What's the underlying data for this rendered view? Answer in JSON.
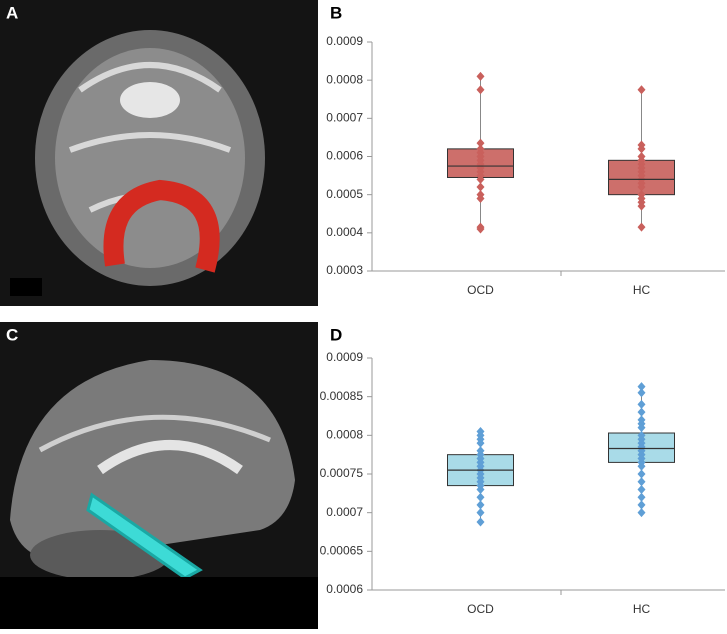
{
  "image_panels": [
    {
      "label": "A"
    },
    {
      "label": "C"
    }
  ],
  "chart_data": [
    {
      "type": "box",
      "label": "B",
      "categories": [
        "OCD",
        "HC"
      ],
      "ylim": [
        0.0003,
        0.0009
      ],
      "yticks": [
        0.0003,
        0.0004,
        0.0005,
        0.0006,
        0.0007,
        0.0008,
        0.0009
      ],
      "box_color": "#cd6f6b",
      "point_color": "#c9605c",
      "series": [
        {
          "q1": 0.000545,
          "median": 0.000575,
          "q3": 0.00062,
          "whisker_low": 0.000415,
          "whisker_high": 0.00081,
          "points": [
            0.00081,
            0.000775,
            0.000635,
            0.00062,
            0.00061,
            0.0006,
            0.00059,
            0.00058,
            0.00057,
            0.00056,
            0.00055,
            0.00054,
            0.00052,
            0.0005,
            0.00049,
            0.000415,
            0.00041
          ]
        },
        {
          "q1": 0.0005,
          "median": 0.00054,
          "q3": 0.00059,
          "whisker_low": 0.000415,
          "whisker_high": 0.000775,
          "points": [
            0.000775,
            0.00063,
            0.00062,
            0.0006,
            0.00059,
            0.00058,
            0.00057,
            0.00056,
            0.00055,
            0.00054,
            0.00053,
            0.00052,
            0.0005,
            0.00049,
            0.00048,
            0.00047,
            0.000415
          ]
        }
      ]
    },
    {
      "type": "box",
      "label": "D",
      "categories": [
        "OCD",
        "HC"
      ],
      "ylim": [
        0.0006,
        0.0009
      ],
      "yticks": [
        0.0006,
        0.00065,
        0.0007,
        0.00075,
        0.0008,
        0.00085,
        0.0009
      ],
      "box_color": "#a9dbe8",
      "point_color": "#5f9fd6",
      "series": [
        {
          "q1": 0.000735,
          "median": 0.000755,
          "q3": 0.000775,
          "whisker_low": 0.000688,
          "whisker_high": 0.000805,
          "points": [
            0.000805,
            0.0008,
            0.000795,
            0.00079,
            0.00078,
            0.000775,
            0.00077,
            0.000765,
            0.00076,
            0.000755,
            0.00075,
            0.000745,
            0.00074,
            0.000735,
            0.00073,
            0.00072,
            0.00071,
            0.0007,
            0.000688
          ]
        },
        {
          "q1": 0.000765,
          "median": 0.000783,
          "q3": 0.000803,
          "whisker_low": 0.0007,
          "whisker_high": 0.000863,
          "points": [
            0.000863,
            0.000855,
            0.00084,
            0.00083,
            0.00082,
            0.000815,
            0.00081,
            0.0008,
            0.000795,
            0.00079,
            0.000785,
            0.00078,
            0.000775,
            0.00077,
            0.000765,
            0.00076,
            0.00075,
            0.00074,
            0.00073,
            0.00072,
            0.00071,
            0.0007
          ]
        }
      ]
    }
  ]
}
